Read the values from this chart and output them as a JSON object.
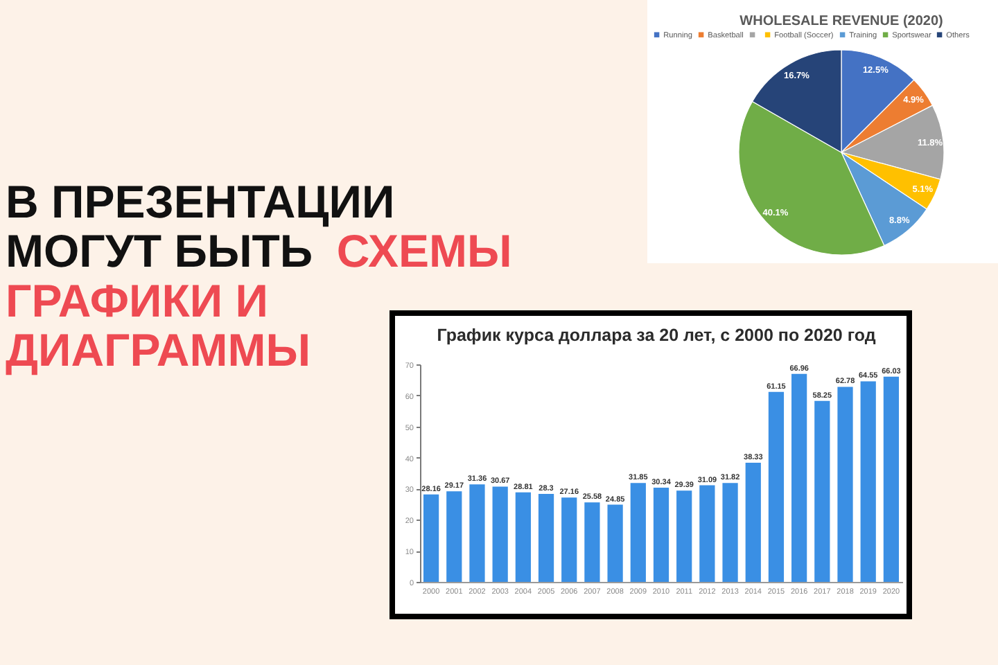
{
  "chart_data": [
    {
      "type": "other",
      "annotations": [
        "В ПРЕЗЕНТАЦИИ",
        "МОГУТ БЫТЬ",
        "СХЕМЫ",
        "ГРАФИКИ И",
        "ДИАГРАММЫ"
      ],
      "colors": [
        "#111111",
        "#111111",
        "#ee4a52",
        "#ee4a52",
        "#ee4a52"
      ]
    },
    {
      "type": "pie",
      "title": "WHOLESALE REVENUE (2020)",
      "categories": [
        "Running",
        "Basketball",
        null,
        "Football (Soccer)",
        "Training",
        "Sportswear",
        "Others"
      ],
      "values": [
        12.5,
        4.9,
        11.8,
        5.1,
        8.8,
        40.1,
        16.7
      ],
      "colors": [
        "#4472c4",
        "#ed7d31",
        "#a5a5a5",
        "#ffc000",
        "#5b9bd5",
        "#70ad47",
        "#264478"
      ],
      "value_labels": [
        "12.5%",
        "4.9%",
        "11.8%",
        "5.1%",
        "8.8%",
        "40.1%",
        "16.7%"
      ],
      "legend": "top"
    },
    {
      "type": "bar",
      "title": "График курса доллара за 20 лет, с 2000 по 2020 год",
      "categories": [
        "2000",
        "2001",
        "2002",
        "2003",
        "2004",
        "2005",
        "2006",
        "2007",
        "2008",
        "2009",
        "2010",
        "2011",
        "2012",
        "2013",
        "2014",
        "2015",
        "2016",
        "2017",
        "2018",
        "2019",
        "2020"
      ],
      "values": [
        28.16,
        29.17,
        31.36,
        30.67,
        28.81,
        28.3,
        27.16,
        25.58,
        24.85,
        31.85,
        30.34,
        29.39,
        31.09,
        31.82,
        38.33,
        61.15,
        66.96,
        58.25,
        62.78,
        64.55,
        66.03
      ],
      "color": "#3a8fe4",
      "ylim": [
        0,
        70
      ],
      "yticks": [
        0,
        10,
        20,
        30,
        40,
        50,
        60,
        70
      ],
      "data_labels": true
    }
  ]
}
